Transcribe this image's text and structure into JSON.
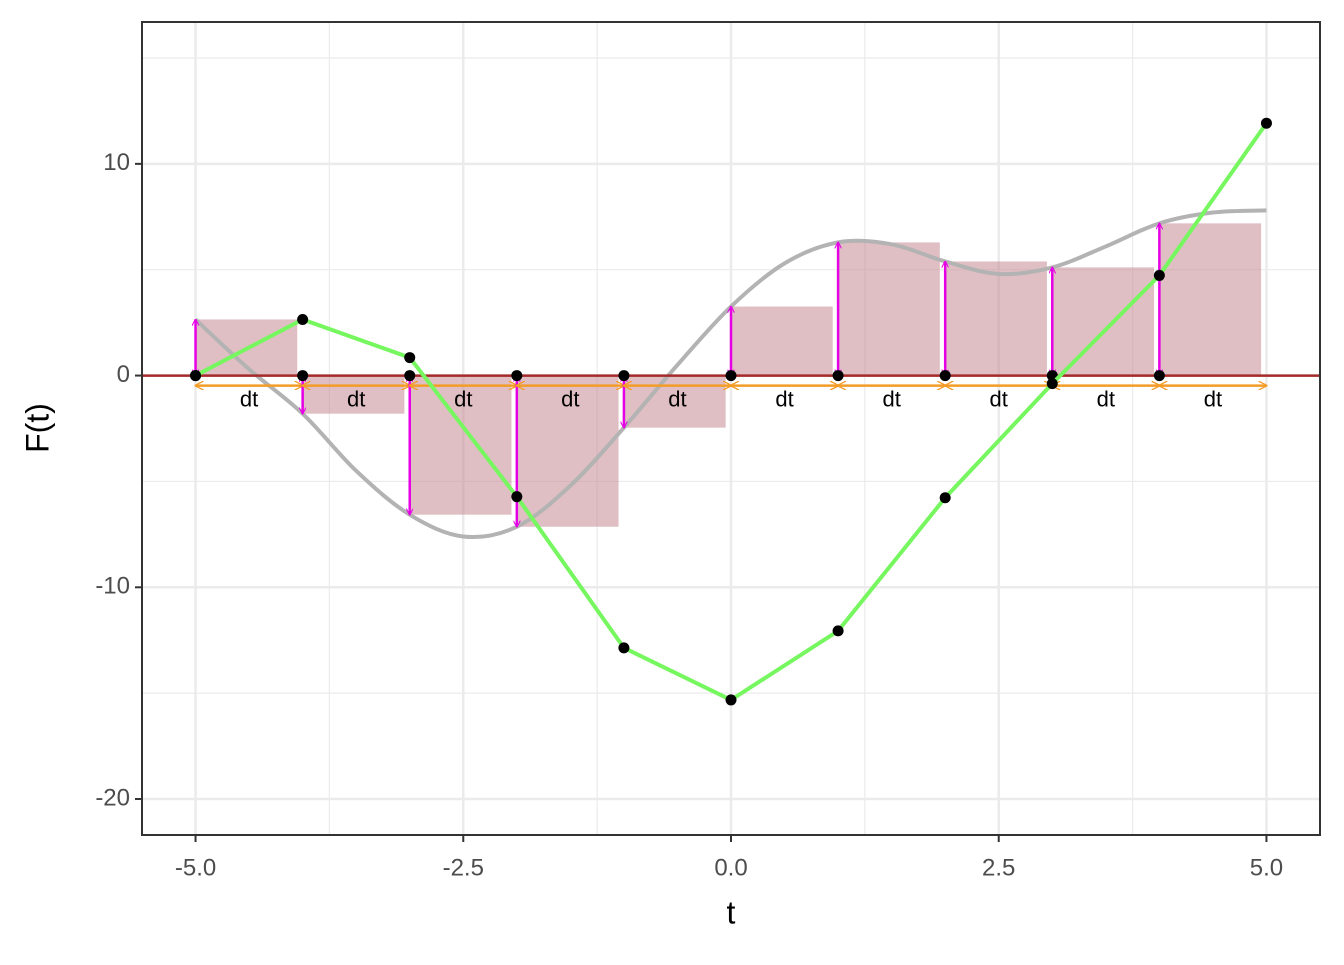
{
  "chart_data": {
    "type": "riemann",
    "x_label": "t",
    "y_label": "F(t)",
    "xlim": [
      -5.5,
      5.5
    ],
    "ylim": [
      -21.7,
      16.7
    ],
    "xticks": [
      {
        "value": -5,
        "label": "-5.0"
      },
      {
        "value": -2.5,
        "label": "-2.5"
      },
      {
        "value": 0,
        "label": "0.0"
      },
      {
        "value": 2.5,
        "label": "2.5"
      },
      {
        "value": 5,
        "label": "5.0"
      }
    ],
    "yticks": [
      -20,
      -10,
      0,
      10
    ],
    "grid": true,
    "curve": {
      "color": "#b3b3b3",
      "x": [
        -5,
        -4.5,
        -4,
        -3.5,
        -3,
        -2.5,
        -2,
        -1.5,
        -1,
        -0.5,
        0,
        0.5,
        1,
        1.5,
        2,
        2.5,
        3,
        3.5,
        4,
        4.5,
        5
      ],
      "values": [
        2.65,
        0.3,
        -1.8,
        -4.5,
        -6.57,
        -7.6,
        -7.14,
        -5.2,
        -2.46,
        0.5,
        3.26,
        5.3,
        6.29,
        6.2,
        5.39,
        4.8,
        5.11,
        6.1,
        7.19,
        7.7,
        7.8
      ]
    },
    "rects": {
      "color": "#c58b91",
      "x": [
        -5,
        -4,
        -3,
        -2,
        -1,
        0,
        1,
        2,
        3,
        4
      ],
      "values": [
        2.65,
        -1.8,
        -6.57,
        -7.14,
        -2.46,
        3.26,
        6.29,
        5.39,
        5.11,
        7.19
      ]
    },
    "cumulative": {
      "color": "#77f75f",
      "x": [
        -5,
        -4,
        -3,
        -2,
        -1,
        0,
        1,
        2,
        3,
        4,
        5
      ],
      "values": [
        0,
        2.65,
        0.85,
        -5.72,
        -12.86,
        -15.32,
        -12.06,
        -5.77,
        -0.38,
        4.73,
        11.92
      ]
    },
    "hline": {
      "value": 0,
      "color": "#a52a2a"
    },
    "height_arrow_color": "#e600e6",
    "step_arrow_color": "#f39c27",
    "step_label": "dt"
  }
}
